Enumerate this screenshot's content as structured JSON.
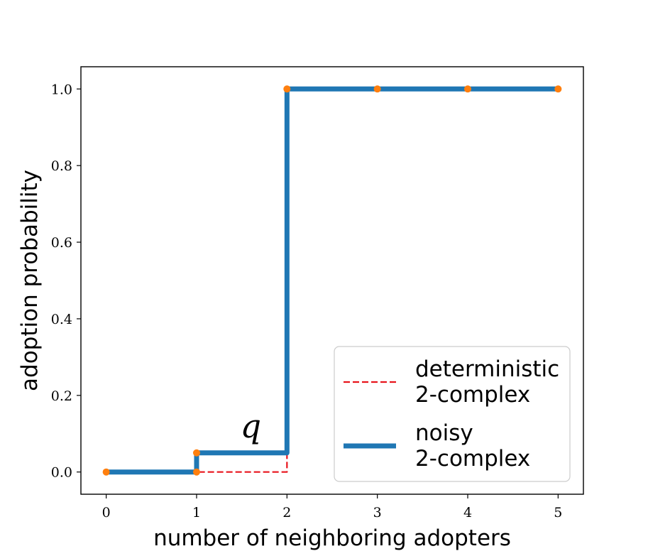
{
  "chart_data": {
    "type": "line",
    "title": "",
    "xlabel": "number of neighboring adopters",
    "ylabel": "adoption probability",
    "xlim": [
      -0.28,
      5.28
    ],
    "ylim": [
      -0.058,
      1.058
    ],
    "xticks": [
      0,
      1,
      2,
      3,
      4,
      5
    ],
    "xtick_labels": [
      "0",
      "1",
      "2",
      "3",
      "4",
      "5"
    ],
    "yticks": [
      0.0,
      0.2,
      0.4,
      0.6,
      0.8,
      1.0
    ],
    "ytick_labels": [
      "0.0",
      "0.2",
      "0.4",
      "0.6",
      "0.8",
      "1.0"
    ],
    "grid": false,
    "legend_position": "lower-right",
    "series": [
      {
        "name": "deterministic\n2-complex",
        "style": "dashed",
        "color": "#e8141c",
        "x": [
          0,
          2,
          2
        ],
        "y": [
          0,
          0,
          1
        ]
      },
      {
        "name": "noisy\n2-complex",
        "style": "solid",
        "color": "#1f77b4",
        "x": [
          0,
          1,
          1,
          2,
          2,
          5
        ],
        "y": [
          0,
          0,
          0.05,
          0.05,
          1,
          1
        ]
      }
    ],
    "points": {
      "color": "#ff7f0e",
      "x": [
        0,
        1,
        1,
        2,
        3,
        4,
        5
      ],
      "y": [
        0,
        0,
        0.05,
        1,
        1,
        1,
        1
      ]
    },
    "annotation": {
      "text": "q",
      "x": 1.6,
      "y": 0.09
    }
  }
}
